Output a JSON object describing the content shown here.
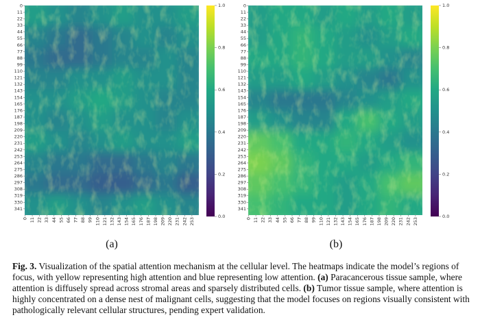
{
  "axes": {
    "xlim": [
      0,
      264
    ],
    "ylim": [
      0,
      352
    ],
    "xticks": [
      0,
      11,
      22,
      33,
      44,
      55,
      66,
      77,
      88,
      99,
      110,
      121,
      132,
      143,
      154,
      165,
      176,
      187,
      198,
      209,
      220,
      231,
      242,
      253
    ],
    "yticks": [
      0,
      11,
      22,
      33,
      44,
      55,
      66,
      77,
      88,
      99,
      110,
      121,
      132,
      143,
      154,
      165,
      176,
      187,
      198,
      209,
      220,
      231,
      242,
      253,
      264,
      275,
      286,
      297,
      308,
      319,
      330,
      341
    ],
    "colorbar": {
      "lim": [
        0,
        1
      ],
      "ticks": [
        {
          "value": 0,
          "label": "0.0"
        },
        {
          "value": 0.2,
          "label": "0.2"
        },
        {
          "value": 0.4,
          "label": "0.4"
        },
        {
          "value": 0.6,
          "label": "0.6"
        },
        {
          "value": 0.8,
          "label": "0.8"
        },
        {
          "value": 1,
          "label": "1.0"
        }
      ]
    }
  },
  "panels": [
    {
      "label": "(a)",
      "values": [
        [
          0.55,
          0.5,
          0.45,
          0.5,
          0.55,
          0.5,
          0.5,
          0.55
        ],
        [
          0.45,
          0.4,
          0.35,
          0.4,
          0.45,
          0.5,
          0.45,
          0.5
        ],
        [
          0.4,
          0.35,
          0.35,
          0.4,
          0.45,
          0.45,
          0.5,
          0.45
        ],
        [
          0.45,
          0.45,
          0.5,
          0.5,
          0.55,
          0.5,
          0.5,
          0.45
        ],
        [
          0.5,
          0.5,
          0.55,
          0.6,
          0.55,
          0.5,
          0.45,
          0.45
        ],
        [
          0.5,
          0.45,
          0.5,
          0.55,
          0.5,
          0.5,
          0.45,
          0.5
        ],
        [
          0.55,
          0.5,
          0.45,
          0.5,
          0.55,
          0.5,
          0.5,
          0.55
        ],
        [
          0.45,
          0.4,
          0.4,
          0.35,
          0.35,
          0.4,
          0.45,
          0.4
        ],
        [
          0.4,
          0.35,
          0.35,
          0.3,
          0.3,
          0.35,
          0.4,
          0.3
        ],
        [
          0.5,
          0.55,
          0.5,
          0.45,
          0.5,
          0.55,
          0.5,
          0.45
        ]
      ]
    },
    {
      "label": "(b)",
      "values": [
        [
          0.55,
          0.6,
          0.6,
          0.55,
          0.6,
          0.55,
          0.6,
          0.55
        ],
        [
          0.55,
          0.6,
          0.65,
          0.6,
          0.55,
          0.5,
          0.55,
          0.6
        ],
        [
          0.6,
          0.6,
          0.65,
          0.6,
          0.55,
          0.55,
          0.5,
          0.45
        ],
        [
          0.55,
          0.55,
          0.6,
          0.55,
          0.5,
          0.45,
          0.4,
          0.5
        ],
        [
          0.45,
          0.4,
          0.4,
          0.4,
          0.45,
          0.5,
          0.55,
          0.6
        ],
        [
          0.55,
          0.5,
          0.45,
          0.45,
          0.6,
          0.7,
          0.6,
          0.55
        ],
        [
          0.75,
          0.7,
          0.6,
          0.6,
          0.65,
          0.6,
          0.55,
          0.5
        ],
        [
          0.8,
          0.75,
          0.65,
          0.6,
          0.6,
          0.55,
          0.6,
          0.65
        ],
        [
          0.75,
          0.7,
          0.65,
          0.6,
          0.55,
          0.6,
          0.7,
          0.75
        ],
        [
          0.7,
          0.65,
          0.6,
          0.6,
          0.55,
          0.6,
          0.65,
          0.6
        ]
      ]
    }
  ],
  "caption": [
    {
      "text": "Fig. 3.",
      "bold": true
    },
    {
      "text": " Visualization of the spatial attention mechanism at the cellular level. The heatmaps indicate the model’s regions of focus, with yellow representing high attention and blue representing low attention. ",
      "bold": false
    },
    {
      "text": "(a)",
      "bold": true
    },
    {
      "text": " Paracancerous tissue sample, where attention is diffusely spread across stromal areas and sparsely distributed cells. ",
      "bold": false
    },
    {
      "text": "(b)",
      "bold": true
    },
    {
      "text": " Tumor tissue sample, where attention is highly concentrated on a dense nest of malignant cells, suggesting that the model focuses on regions visually consistent with pathologically relevant cellular structures, pending expert validation.",
      "bold": false
    }
  ]
}
